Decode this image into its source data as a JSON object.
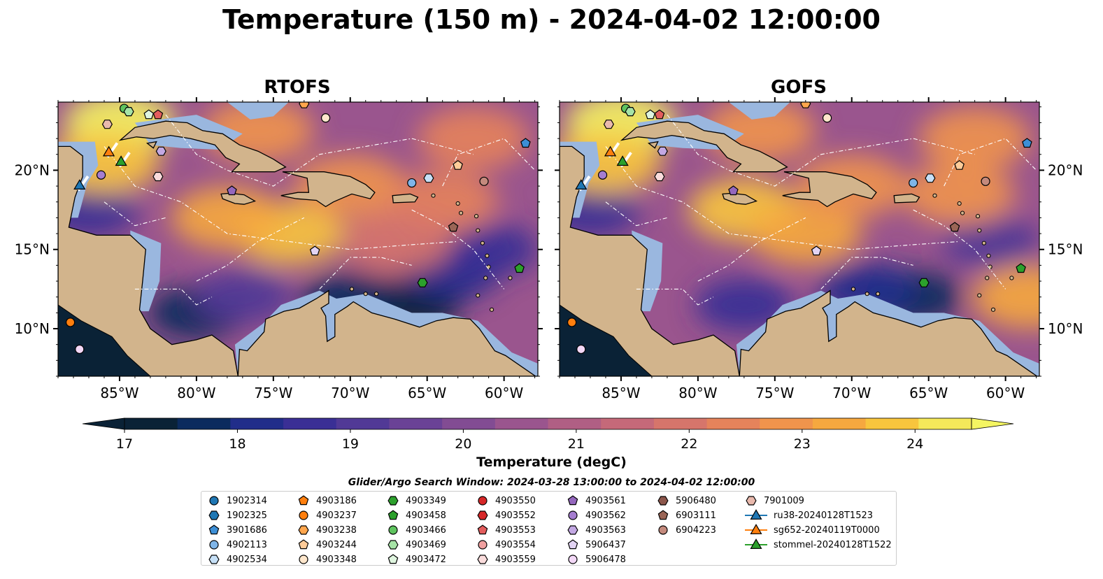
{
  "figure": {
    "suptitle": "Temperature (150 m) - 2024-04-02 12:00:00",
    "colorbar_label": "Temperature (degC)",
    "search_window": "Glider/Argo Search Window: 2024-03-28 13:00:00 to 2024-04-02 12:00:00"
  },
  "chart_data": [
    {
      "type": "heatmap",
      "title": "RTOFS",
      "xlim": [
        -89,
        -57.8
      ],
      "ylim": [
        7,
        24.3
      ],
      "xticks": [
        "85°W",
        "80°W",
        "75°W",
        "70°W",
        "65°W",
        "60°W"
      ],
      "xtick_values": [
        -85,
        -80,
        -75,
        -70,
        -65,
        -60
      ],
      "yticks": [
        "10°N",
        "15°N",
        "20°N"
      ],
      "ytick_values": [
        10,
        15,
        20
      ],
      "ytick_side": "left",
      "grid": false,
      "warm_regions": [
        {
          "lon": -85,
          "lat": 23,
          "temp": 24.5
        },
        {
          "lon": -86,
          "lat": 20.5,
          "temp": 24
        },
        {
          "lon": -74,
          "lat": 16,
          "temp": 24
        },
        {
          "lon": -78,
          "lat": 17,
          "temp": 23.5
        },
        {
          "lon": -70,
          "lat": 19,
          "temp": 23
        },
        {
          "lon": -64,
          "lat": 18,
          "temp": 22.5
        },
        {
          "lon": -62,
          "lat": 22,
          "temp": 22.5
        },
        {
          "lon": -76,
          "lat": 22.5,
          "temp": 23
        },
        {
          "lon": -67,
          "lat": 15.5,
          "temp": 22
        }
      ],
      "cold_regions": [
        {
          "lon": -87,
          "lat": 17.5,
          "temp": 18.5
        },
        {
          "lon": -80,
          "lat": 11,
          "temp": 17.5
        },
        {
          "lon": -66,
          "lat": 11.5,
          "temp": 17.2
        },
        {
          "lon": -70,
          "lat": 11.8,
          "temp": 17.5
        },
        {
          "lon": -63.5,
          "lat": 13.5,
          "temp": 18
        },
        {
          "lon": -61,
          "lat": 15,
          "temp": 18.5
        },
        {
          "lon": -77,
          "lat": 12,
          "temp": 19
        }
      ]
    },
    {
      "type": "heatmap",
      "title": "GOFS",
      "xlim": [
        -89,
        -57.8
      ],
      "ylim": [
        7,
        24.3
      ],
      "xticks": [
        "85°W",
        "80°W",
        "75°W",
        "70°W",
        "65°W",
        "60°W"
      ],
      "xtick_values": [
        -85,
        -80,
        -75,
        -70,
        -65,
        -60
      ],
      "yticks": [
        "10°N",
        "15°N",
        "20°N"
      ],
      "ytick_values": [
        10,
        15,
        20
      ],
      "ytick_side": "right",
      "grid": false,
      "warm_regions": [
        {
          "lon": -85,
          "lat": 23,
          "temp": 24.5
        },
        {
          "lon": -86,
          "lat": 20.5,
          "temp": 24
        },
        {
          "lon": -77,
          "lat": 17.5,
          "temp": 24
        },
        {
          "lon": -73,
          "lat": 16,
          "temp": 23.5
        },
        {
          "lon": -70,
          "lat": 19,
          "temp": 23
        },
        {
          "lon": -63,
          "lat": 18.5,
          "temp": 23
        },
        {
          "lon": -62,
          "lat": 22,
          "temp": 23
        },
        {
          "lon": -58.5,
          "lat": 12,
          "temp": 23.5
        },
        {
          "lon": -76,
          "lat": 22.5,
          "temp": 23
        }
      ],
      "cold_regions": [
        {
          "lon": -87,
          "lat": 17.5,
          "temp": 18.5
        },
        {
          "lon": -77,
          "lat": 11.5,
          "temp": 18.5
        },
        {
          "lon": -66,
          "lat": 12,
          "temp": 17.5
        },
        {
          "lon": -69,
          "lat": 12.5,
          "temp": 18
        },
        {
          "lon": -61,
          "lat": 15.5,
          "temp": 19
        }
      ]
    }
  ],
  "colorbar": {
    "vmin": 17,
    "vmax": 24.5,
    "step": 0.5,
    "extend": "both",
    "ticks": [
      "17",
      "18",
      "19",
      "20",
      "21",
      "22",
      "23",
      "24"
    ],
    "tick_values": [
      17,
      18,
      19,
      20,
      21,
      22,
      23,
      24
    ],
    "colors": [
      "#0a2236",
      "#0b2b5e",
      "#212d8a",
      "#3a2f95",
      "#513996",
      "#6a4296",
      "#824c93",
      "#9a558e",
      "#b05f84",
      "#c56979",
      "#d6756b",
      "#e5835b",
      "#f0944c",
      "#f6a83f",
      "#f8c53d",
      "#f4e85a"
    ],
    "under_color": "#0a2236",
    "over_color": "#f4f562"
  },
  "map_colors": {
    "land": "#d2b48c",
    "shelf": "#9ab7df",
    "deep_land_sea": "#0a2236",
    "eez_line": "#ffffff"
  },
  "observations": [
    {
      "id": "1902314",
      "marker": "circle",
      "color": "#1f77b4",
      "lon": null,
      "lat": null
    },
    {
      "id": "1902325",
      "marker": "hexagon",
      "color": "#1f77b4",
      "lon": null,
      "lat": null
    },
    {
      "id": "3901686",
      "marker": "pentagon",
      "color": "#3d8fd6",
      "lon": -58.6,
      "lat": 21.7
    },
    {
      "id": "4902113",
      "marker": "circle",
      "color": "#7fb5e8",
      "lon": -66,
      "lat": 19.2
    },
    {
      "id": "4902534",
      "marker": "hexagon",
      "color": "#c6e0f7",
      "lon": -64.9,
      "lat": 19.5
    },
    {
      "id": "4903186",
      "marker": "pentagon",
      "color": "#ff7f0e",
      "lon": null,
      "lat": null
    },
    {
      "id": "4903237",
      "marker": "circle",
      "color": "#ff7f0e",
      "lon": -88.2,
      "lat": 10.4
    },
    {
      "id": "4903238",
      "marker": "hexagon",
      "color": "#ffa64d",
      "lon": -73,
      "lat": 24.2
    },
    {
      "id": "4903244",
      "marker": "pentagon",
      "color": "#ffcc99",
      "lon": -63,
      "lat": 20.3
    },
    {
      "id": "4903348",
      "marker": "circle",
      "color": "#ffe7cc",
      "lon": -71.6,
      "lat": 23.3
    },
    {
      "id": "4903349",
      "marker": "hexagon",
      "color": "#2ca02c",
      "lon": -65.3,
      "lat": 12.9
    },
    {
      "id": "4903458",
      "marker": "pentagon",
      "color": "#2ca02c",
      "lon": -59,
      "lat": 13.8
    },
    {
      "id": "4903466",
      "marker": "circle",
      "color": "#5fc45f",
      "lon": -84.7,
      "lat": 23.9
    },
    {
      "id": "4903469",
      "marker": "hexagon",
      "color": "#a6e3a6",
      "lon": -84.4,
      "lat": 23.7
    },
    {
      "id": "4903472",
      "marker": "pentagon",
      "color": "#dff5df",
      "lon": -83.1,
      "lat": 23.5
    },
    {
      "id": "4903550",
      "marker": "circle",
      "color": "#d62728",
      "lon": null,
      "lat": null
    },
    {
      "id": "4903552",
      "marker": "hexagon",
      "color": "#d62728",
      "lon": null,
      "lat": null
    },
    {
      "id": "4903553",
      "marker": "pentagon",
      "color": "#e35d5d",
      "lon": -82.5,
      "lat": 23.5
    },
    {
      "id": "4903554",
      "marker": "circle",
      "color": "#f0a0a0",
      "lon": null,
      "lat": null
    },
    {
      "id": "4903559",
      "marker": "hexagon",
      "color": "#fadcdc",
      "lon": -82.5,
      "lat": 19.6
    },
    {
      "id": "4903561",
      "marker": "pentagon",
      "color": "#9467bd",
      "lon": -77.7,
      "lat": 18.7
    },
    {
      "id": "4903562",
      "marker": "circle",
      "color": "#a57dd0",
      "lon": -86.2,
      "lat": 19.7
    },
    {
      "id": "4903563",
      "marker": "hexagon",
      "color": "#c3a8e3",
      "lon": -82.3,
      "lat": 21.2
    },
    {
      "id": "5906437",
      "marker": "pentagon",
      "color": "#e2d3f3",
      "lon": -72.3,
      "lat": 14.9
    },
    {
      "id": "5906478",
      "marker": "circle",
      "color": "#f3d8f7",
      "lon": -87.6,
      "lat": 8.7
    },
    {
      "id": "5906480",
      "marker": "hexagon",
      "color": "#8c564b",
      "lon": null,
      "lat": null
    },
    {
      "id": "6903111",
      "marker": "pentagon",
      "color": "#9a6556",
      "lon": -63.3,
      "lat": 16.4
    },
    {
      "id": "6904223",
      "marker": "circle",
      "color": "#c48a7d",
      "lon": -61.3,
      "lat": 19.3
    },
    {
      "id": "7901009",
      "marker": "hexagon",
      "color": "#e9b9ad",
      "lon": -85.8,
      "lat": 22.9
    },
    {
      "id": "ru38-20240128T1523",
      "marker": "triangle",
      "color": "#1f77b4",
      "lon": -87.6,
      "lat": 19,
      "track": true
    },
    {
      "id": "sg652-20240119T0000",
      "marker": "triangle",
      "color": "#ff7f0e",
      "lon": -85.7,
      "lat": 21.1,
      "track": true
    },
    {
      "id": "stommel-20240128T1522",
      "marker": "triangle",
      "color": "#2ca02c",
      "lon": -84.9,
      "lat": 20.5,
      "track": true
    }
  ]
}
